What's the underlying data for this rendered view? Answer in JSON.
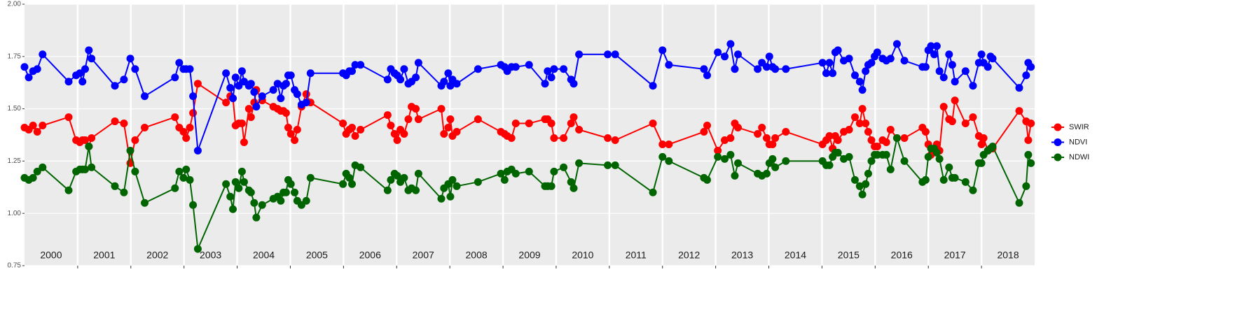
{
  "chart_data": {
    "type": "line",
    "xlim": [
      2000,
      2019
    ],
    "xticks": [
      2001,
      2002,
      2003,
      2004,
      2005,
      2006,
      2007,
      2008,
      2009,
      2010,
      2011,
      2012,
      2013,
      2014,
      2015,
      2016,
      2017,
      2018
    ],
    "year_labels": [
      "2000",
      "2001",
      "2002",
      "2003",
      "2004",
      "2005",
      "2006",
      "2007",
      "2008",
      "2009",
      "2010",
      "2011",
      "2012",
      "2013",
      "2014",
      "2015",
      "2016",
      "2017",
      "2018"
    ],
    "ylim": [
      0.75,
      2.0
    ],
    "yticks": [
      {
        "value": 0.75,
        "label": "0.75"
      },
      {
        "value": 1.0,
        "label": "1.00"
      },
      {
        "value": 1.25,
        "label": "1.25"
      },
      {
        "value": 1.5,
        "label": "1.50"
      },
      {
        "value": 1.75,
        "label": "1.75"
      },
      {
        "value": 2.0,
        "label": "2.00"
      }
    ],
    "grid": true,
    "legend": "right",
    "x": [
      2000.0,
      2000.08,
      2000.16,
      2000.24,
      2000.34,
      2000.83,
      2000.97,
      2001.04,
      2001.09,
      2001.14,
      2001.21,
      2001.26,
      2001.7,
      2001.87,
      2001.99,
      2002.08,
      2002.26,
      2002.83,
      2002.91,
      2002.99,
      2003.04,
      2003.11,
      2003.17,
      2003.26,
      2003.79,
      2003.87,
      2003.92,
      2003.97,
      2004.03,
      2004.09,
      2004.13,
      2004.22,
      2004.26,
      2004.32,
      2004.36,
      2004.47,
      2004.68,
      2004.76,
      2004.82,
      2004.87,
      2004.92,
      2004.96,
      2005.01,
      2005.08,
      2005.13,
      2005.21,
      2005.3,
      2005.38,
      2005.99,
      2006.05,
      2006.11,
      2006.16,
      2006.22,
      2006.32,
      2006.83,
      2006.89,
      2006.96,
      2007.01,
      2007.07,
      2007.14,
      2007.22,
      2007.28,
      2007.36,
      2007.41,
      2007.84,
      2007.89,
      2007.97,
      2008.01,
      2008.05,
      2008.13,
      2008.53,
      2008.96,
      2009.03,
      2009.08,
      2009.16,
      2009.24,
      2009.49,
      2009.79,
      2009.84,
      2009.91,
      2009.96,
      2010.14,
      2010.28,
      2010.33,
      2010.43,
      2010.97,
      2011.11,
      2011.82,
      2012.0,
      2012.12,
      2012.78,
      2012.84,
      2013.04,
      2013.17,
      2013.28,
      2013.36,
      2013.42,
      2013.79,
      2013.87,
      2013.96,
      2014.01,
      2014.07,
      2014.12,
      2014.32,
      2015.01,
      2015.08,
      2015.14,
      2015.2,
      2015.25,
      2015.3,
      2015.41,
      2015.51,
      2015.62,
      2015.71,
      2015.76,
      2015.82,
      2015.87,
      2015.93,
      2015.99,
      2016.04,
      2016.14,
      2016.21,
      2016.29,
      2016.41,
      2016.55,
      2016.89,
      2016.95,
      2017.0,
      2017.05,
      2017.11,
      2017.16,
      2017.21,
      2017.29,
      2017.39,
      2017.45,
      2017.5,
      2017.7,
      2017.84,
      2017.95,
      2018.0,
      2018.04,
      2018.12,
      2018.17,
      2018.21,
      2018.71,
      2018.84,
      2018.88,
      2018.93
    ],
    "series": [
      {
        "name": "SWIR",
        "color": "#ff0000",
        "values": [
          1.41,
          1.4,
          1.42,
          1.39,
          1.42,
          1.46,
          1.35,
          1.34,
          1.35,
          1.35,
          1.32,
          1.36,
          1.44,
          1.43,
          1.24,
          1.35,
          1.41,
          1.46,
          1.41,
          1.39,
          1.36,
          1.41,
          1.48,
          1.62,
          1.53,
          1.56,
          1.55,
          1.42,
          1.43,
          1.43,
          1.34,
          1.5,
          1.46,
          1.53,
          1.59,
          1.54,
          1.51,
          1.5,
          1.49,
          1.49,
          1.48,
          1.41,
          1.38,
          1.35,
          1.4,
          1.51,
          1.57,
          1.53,
          1.43,
          1.38,
          1.4,
          1.41,
          1.37,
          1.4,
          1.47,
          1.42,
          1.38,
          1.35,
          1.4,
          1.38,
          1.45,
          1.51,
          1.5,
          1.45,
          1.5,
          1.38,
          1.41,
          1.45,
          1.37,
          1.39,
          1.45,
          1.39,
          1.38,
          1.37,
          1.36,
          1.43,
          1.43,
          1.45,
          1.45,
          1.43,
          1.36,
          1.36,
          1.43,
          1.46,
          1.4,
          1.36,
          1.35,
          1.43,
          1.33,
          1.33,
          1.39,
          1.42,
          1.3,
          1.35,
          1.36,
          1.43,
          1.41,
          1.38,
          1.41,
          1.36,
          1.33,
          1.33,
          1.36,
          1.39,
          1.33,
          1.35,
          1.37,
          1.31,
          1.37,
          1.35,
          1.39,
          1.4,
          1.46,
          1.43,
          1.5,
          1.43,
          1.39,
          1.35,
          1.32,
          1.32,
          1.35,
          1.34,
          1.4,
          1.36,
          1.36,
          1.41,
          1.39,
          1.33,
          1.28,
          1.31,
          1.33,
          1.3,
          1.51,
          1.45,
          1.44,
          1.54,
          1.43,
          1.46,
          1.37,
          1.33,
          1.36,
          1.3,
          1.31,
          1.31,
          1.49,
          1.44,
          1.35,
          1.43
        ]
      },
      {
        "name": "NDVI",
        "color": "#0000ff",
        "values": [
          1.7,
          1.65,
          1.68,
          1.69,
          1.76,
          1.63,
          1.66,
          1.67,
          1.63,
          1.69,
          1.78,
          1.74,
          1.61,
          1.64,
          1.74,
          1.69,
          1.56,
          1.65,
          1.72,
          1.69,
          1.69,
          1.69,
          1.56,
          1.3,
          1.67,
          1.6,
          1.55,
          1.65,
          1.61,
          1.68,
          1.63,
          1.61,
          1.62,
          1.58,
          1.51,
          1.56,
          1.59,
          1.62,
          1.55,
          1.61,
          1.62,
          1.66,
          1.66,
          1.59,
          1.57,
          1.52,
          1.53,
          1.67,
          1.67,
          1.66,
          1.68,
          1.68,
          1.71,
          1.71,
          1.64,
          1.69,
          1.67,
          1.66,
          1.64,
          1.69,
          1.62,
          1.63,
          1.65,
          1.72,
          1.61,
          1.63,
          1.67,
          1.61,
          1.64,
          1.62,
          1.69,
          1.71,
          1.7,
          1.68,
          1.7,
          1.7,
          1.71,
          1.62,
          1.68,
          1.65,
          1.69,
          1.69,
          1.64,
          1.62,
          1.76,
          1.76,
          1.76,
          1.61,
          1.78,
          1.71,
          1.69,
          1.66,
          1.77,
          1.75,
          1.81,
          1.69,
          1.76,
          1.69,
          1.72,
          1.7,
          1.75,
          1.7,
          1.69,
          1.69,
          1.72,
          1.67,
          1.72,
          1.67,
          1.77,
          1.78,
          1.73,
          1.74,
          1.66,
          1.63,
          1.59,
          1.68,
          1.71,
          1.72,
          1.75,
          1.77,
          1.74,
          1.73,
          1.74,
          1.81,
          1.73,
          1.7,
          1.7,
          1.78,
          1.8,
          1.76,
          1.8,
          1.68,
          1.65,
          1.76,
          1.71,
          1.63,
          1.68,
          1.61,
          1.72,
          1.76,
          1.72,
          1.7,
          1.75,
          1.74,
          1.6,
          1.66,
          1.72,
          1.7
        ]
      },
      {
        "name": "NDWI",
        "color": "#006400",
        "values": [
          1.17,
          1.16,
          1.17,
          1.2,
          1.22,
          1.11,
          1.2,
          1.21,
          1.21,
          1.21,
          1.32,
          1.22,
          1.13,
          1.1,
          1.3,
          1.2,
          1.05,
          1.12,
          1.2,
          1.17,
          1.21,
          1.16,
          1.04,
          0.83,
          1.14,
          1.08,
          1.02,
          1.15,
          1.12,
          1.2,
          1.15,
          1.11,
          1.1,
          1.05,
          0.98,
          1.04,
          1.07,
          1.08,
          1.06,
          1.1,
          1.1,
          1.16,
          1.14,
          1.1,
          1.06,
          1.04,
          1.06,
          1.17,
          1.14,
          1.19,
          1.17,
          1.14,
          1.23,
          1.22,
          1.11,
          1.16,
          1.19,
          1.18,
          1.15,
          1.17,
          1.11,
          1.12,
          1.11,
          1.19,
          1.07,
          1.12,
          1.14,
          1.08,
          1.16,
          1.13,
          1.15,
          1.19,
          1.16,
          1.2,
          1.21,
          1.19,
          1.2,
          1.13,
          1.13,
          1.13,
          1.2,
          1.22,
          1.15,
          1.12,
          1.24,
          1.23,
          1.23,
          1.1,
          1.27,
          1.25,
          1.17,
          1.16,
          1.27,
          1.26,
          1.28,
          1.18,
          1.24,
          1.19,
          1.18,
          1.19,
          1.24,
          1.26,
          1.22,
          1.25,
          1.25,
          1.23,
          1.23,
          1.27,
          1.29,
          1.29,
          1.26,
          1.27,
          1.16,
          1.13,
          1.09,
          1.14,
          1.19,
          1.25,
          1.28,
          1.28,
          1.28,
          1.28,
          1.21,
          1.36,
          1.25,
          1.15,
          1.16,
          1.27,
          1.31,
          1.31,
          1.29,
          1.26,
          1.16,
          1.22,
          1.17,
          1.17,
          1.15,
          1.11,
          1.24,
          1.24,
          1.28,
          1.3,
          1.31,
          1.32,
          1.05,
          1.13,
          1.28,
          1.24
        ]
      }
    ]
  }
}
